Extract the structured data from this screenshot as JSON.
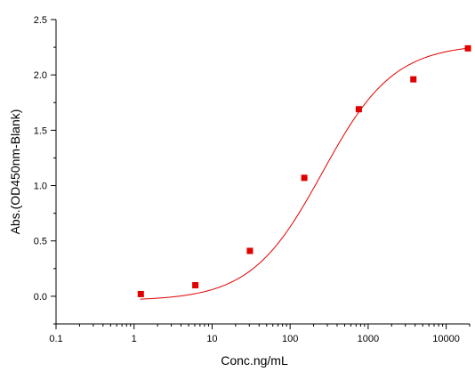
{
  "chart_data": {
    "type": "scatter",
    "title": "",
    "xlabel": "Conc.ng/mL",
    "ylabel": "Abs.(OD450nm-Blank)",
    "xscale": "log",
    "xlim": [
      0.1,
      20000
    ],
    "ylim": [
      -0.25,
      2.5
    ],
    "x_ticks": [
      {
        "value": 0.1,
        "label": "0.1"
      },
      {
        "value": 1,
        "label": "1"
      },
      {
        "value": 10,
        "label": "10"
      },
      {
        "value": 100,
        "label": "100"
      },
      {
        "value": 1000,
        "label": "1000"
      },
      {
        "value": 10000,
        "label": "10000"
      }
    ],
    "y_ticks": [
      {
        "value": 0.0,
        "label": "0.0"
      },
      {
        "value": 0.5,
        "label": "0.5"
      },
      {
        "value": 1.0,
        "label": "1.0"
      },
      {
        "value": 1.5,
        "label": "1.5"
      },
      {
        "value": 2.0,
        "label": "2.0"
      },
      {
        "value": 2.5,
        "label": "2.5"
      }
    ],
    "grid": false,
    "legend": "none",
    "series": [
      {
        "points": [
          {
            "x": 1.22,
            "y": 0.02
          },
          {
            "x": 6.1,
            "y": 0.1
          },
          {
            "x": 30.5,
            "y": 0.41
          },
          {
            "x": 152,
            "y": 1.07
          },
          {
            "x": 760,
            "y": 1.69
          },
          {
            "x": 3800,
            "y": 1.96
          },
          {
            "x": 19000,
            "y": 2.24
          }
        ],
        "color": "#e00000",
        "marker": "square"
      }
    ],
    "fit_curve": {
      "type": "4PL",
      "bottom": -0.04,
      "top": 2.28,
      "ec50": 260,
      "hill": 0.95,
      "x_range": [
        1.2,
        19000
      ],
      "color": "#e00000"
    }
  }
}
